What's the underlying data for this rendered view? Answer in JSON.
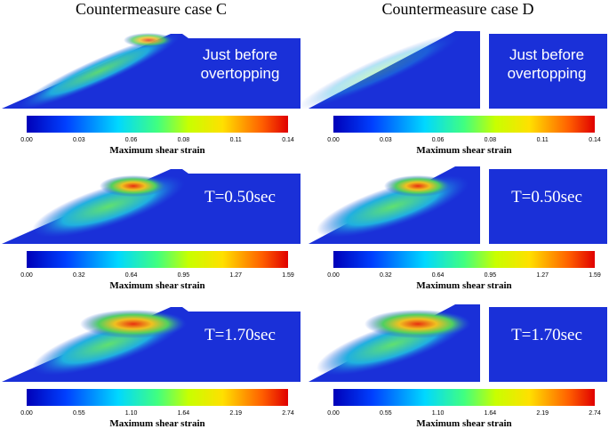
{
  "columns": [
    {
      "title": "Countermeasure case C",
      "panels": [
        {
          "label": [
            "Just before",
            "overtopping"
          ],
          "colorbar": {
            "ticks": [
              "0.00",
              "0.03",
              "0.06",
              "0.08",
              "0.11",
              "0.14"
            ],
            "label": "Maximum shear strain"
          }
        },
        {
          "label": [
            "T=0.50sec"
          ],
          "colorbar": {
            "ticks": [
              "0.00",
              "0.32",
              "0.64",
              "0.95",
              "1.27",
              "1.59"
            ],
            "label": "Maximum shear strain"
          }
        },
        {
          "label": [
            "T=1.70sec"
          ],
          "colorbar": {
            "ticks": [
              "0.00",
              "0.55",
              "1.10",
              "1.64",
              "2.19",
              "2.74"
            ],
            "label": "Maximum shear strain"
          }
        }
      ]
    },
    {
      "title": "Countermeasure case D",
      "panels": [
        {
          "label": [
            "Just before",
            "overtopping"
          ],
          "colorbar": {
            "ticks": [
              "0.00",
              "0.03",
              "0.06",
              "0.08",
              "0.11",
              "0.14"
            ],
            "label": "Maximum shear strain"
          }
        },
        {
          "label": [
            "T=0.50sec"
          ],
          "colorbar": {
            "ticks": [
              "0.00",
              "0.32",
              "0.64",
              "0.95",
              "1.27",
              "1.59"
            ],
            "label": "Maximum shear strain"
          }
        },
        {
          "label": [
            "T=1.70sec"
          ],
          "colorbar": {
            "ticks": [
              "0.00",
              "0.55",
              "1.10",
              "1.64",
              "2.19",
              "2.74"
            ],
            "label": "Maximum shear strain"
          }
        }
      ]
    }
  ]
}
